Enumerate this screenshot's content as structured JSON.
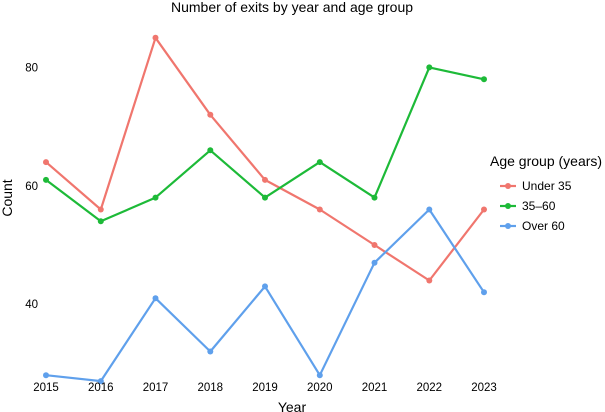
{
  "chart_data": {
    "type": "line",
    "title": "Number of exits by year and age group",
    "xlabel": "Year",
    "ylabel": "Count",
    "x": [
      2015,
      2016,
      2017,
      2018,
      2019,
      2020,
      2021,
      2022,
      2023
    ],
    "x_tick_labels": [
      "2015",
      "2016",
      "2017",
      "2018",
      "2019",
      "2020",
      "2021",
      "2022",
      "2023"
    ],
    "y_ticks": [
      40,
      60,
      80
    ],
    "y_tick_labels": [
      "40",
      "60",
      "80"
    ],
    "ylim": [
      26,
      87
    ],
    "grid": false,
    "legend": {
      "title": "Age group (years)",
      "position": "right"
    },
    "series": [
      {
        "name": "Under 35",
        "color": "#F0766E",
        "values": [
          64,
          56,
          85,
          72,
          61,
          56,
          50,
          44,
          56
        ]
      },
      {
        "name": "35–60",
        "color": "#1DBA38",
        "values": [
          61,
          54,
          58,
          66,
          58,
          64,
          58,
          80,
          78
        ]
      },
      {
        "name": "Over 60",
        "color": "#5FA0EC",
        "values": [
          28,
          27,
          41,
          32,
          43,
          28,
          47,
          56,
          42
        ]
      }
    ]
  }
}
